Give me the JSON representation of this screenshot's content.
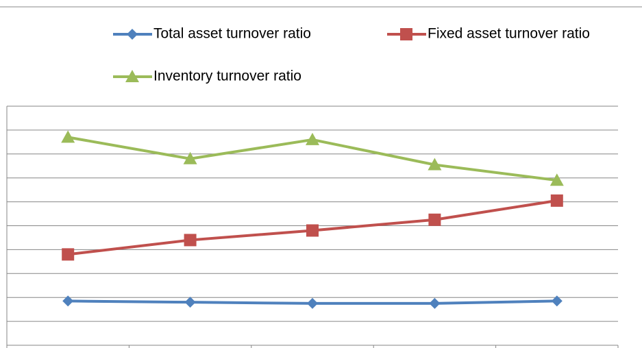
{
  "chart_data": {
    "type": "line",
    "categories": [
      null,
      null,
      null,
      null,
      null
    ],
    "series": [
      {
        "name": "Total asset turnover ratio",
        "color": "#4f81bd",
        "marker": "diamond",
        "values": [
          1.85,
          1.8,
          1.75,
          1.75,
          1.85
        ]
      },
      {
        "name": "Fixed asset turnover ratio",
        "color": "#c0504d",
        "marker": "square",
        "values": [
          3.8,
          4.4,
          4.8,
          5.25,
          6.05
        ]
      },
      {
        "name": "Inventory turnover ratio",
        "color": "#9bbb59",
        "marker": "triangle",
        "values": [
          8.7,
          7.8,
          8.6,
          7.55,
          6.9
        ]
      }
    ],
    "ylim": [
      0,
      10
    ],
    "yticks": [
      0,
      1,
      2,
      3,
      4,
      5,
      6,
      7,
      8,
      9,
      10
    ],
    "grid": true,
    "legend": "top"
  }
}
